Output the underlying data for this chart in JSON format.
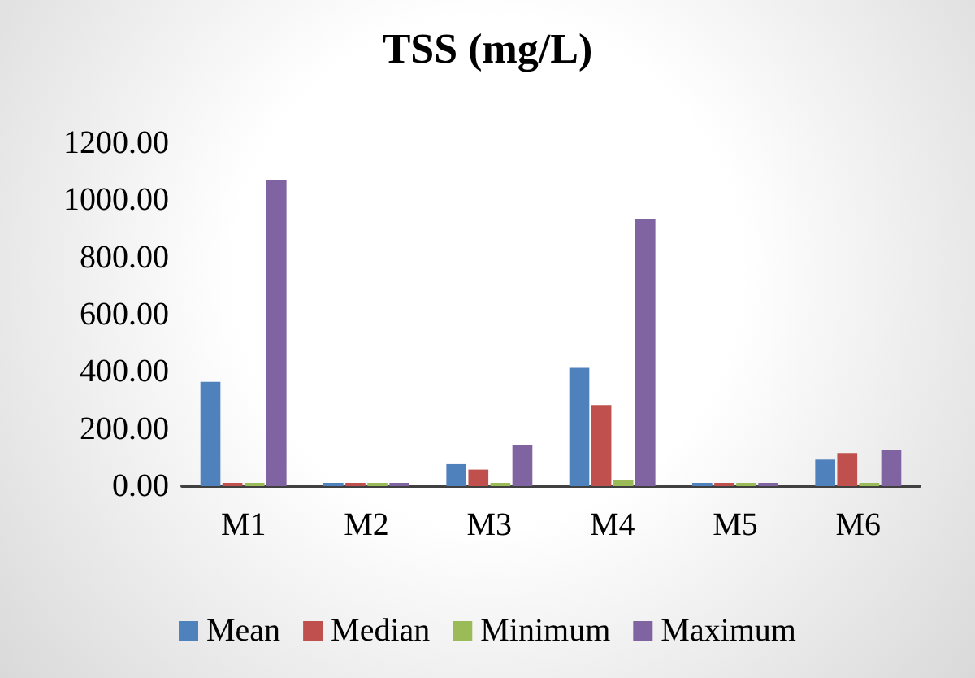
{
  "chart_data": {
    "type": "bar",
    "title": "TSS (mg/L)",
    "categories": [
      "M1",
      "M2",
      "M3",
      "M4",
      "M5",
      "M6"
    ],
    "series": [
      {
        "name": "Mean",
        "color": "#4f81bd",
        "values": [
          365,
          5,
          77,
          414,
          5,
          93
        ]
      },
      {
        "name": "Median",
        "color": "#c0504d",
        "values": [
          5,
          5,
          58,
          284,
          5,
          116
        ]
      },
      {
        "name": "Minimum",
        "color": "#9bbb59",
        "values": [
          3,
          3,
          3,
          20,
          3,
          10
        ]
      },
      {
        "name": "Maximum",
        "color": "#8064a2",
        "values": [
          1070,
          5,
          144,
          935,
          5,
          128
        ]
      }
    ],
    "ylim": [
      0,
      1200
    ],
    "yticks": [
      {
        "value": 0,
        "label": "0.00"
      },
      {
        "value": 200,
        "label": "200.00"
      },
      {
        "value": 400,
        "label": "400.00"
      },
      {
        "value": 600,
        "label": "600.00"
      },
      {
        "value": 800,
        "label": "800.00"
      },
      {
        "value": 1000,
        "label": "1000.00"
      },
      {
        "value": 1200,
        "label": "1200.00"
      }
    ],
    "grid": false,
    "legend": "bottom"
  }
}
